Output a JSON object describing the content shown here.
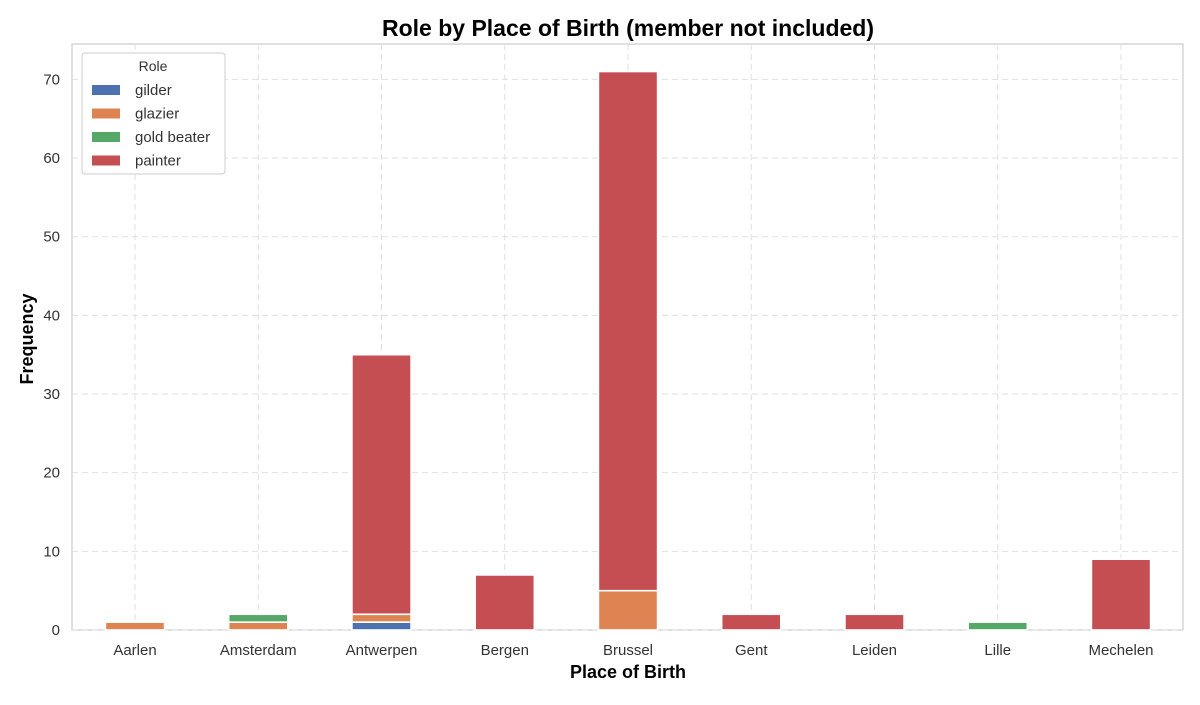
{
  "chart_data": {
    "type": "bar",
    "stacked": true,
    "title": "Role by Place of Birth (member not included)",
    "xlabel": "Place of Birth",
    "ylabel": "Frequency",
    "categories": [
      "Aarlen",
      "Amsterdam",
      "Antwerpen",
      "Bergen",
      "Brussel",
      "Gent",
      "Leiden",
      "Lille",
      "Mechelen"
    ],
    "series": [
      {
        "name": "gilder",
        "color": "#4c72b0",
        "values": [
          0,
          0,
          1,
          0,
          0,
          0,
          0,
          0,
          0
        ]
      },
      {
        "name": "glazier",
        "color": "#dd8452",
        "values": [
          1,
          1,
          1,
          0,
          5,
          0,
          0,
          0,
          0
        ]
      },
      {
        "name": "gold beater",
        "color": "#55a868",
        "values": [
          0,
          1,
          0,
          0,
          0,
          0,
          0,
          1,
          0
        ]
      },
      {
        "name": "painter",
        "color": "#c44e52",
        "values": [
          0,
          0,
          33,
          7,
          66,
          2,
          2,
          0,
          9
        ]
      }
    ],
    "ylim": [
      0,
      74.5
    ],
    "yticks": [
      0,
      10,
      20,
      30,
      40,
      50,
      60,
      70
    ],
    "grid": true,
    "legend": {
      "title": "Role",
      "placement": "top-left"
    }
  }
}
